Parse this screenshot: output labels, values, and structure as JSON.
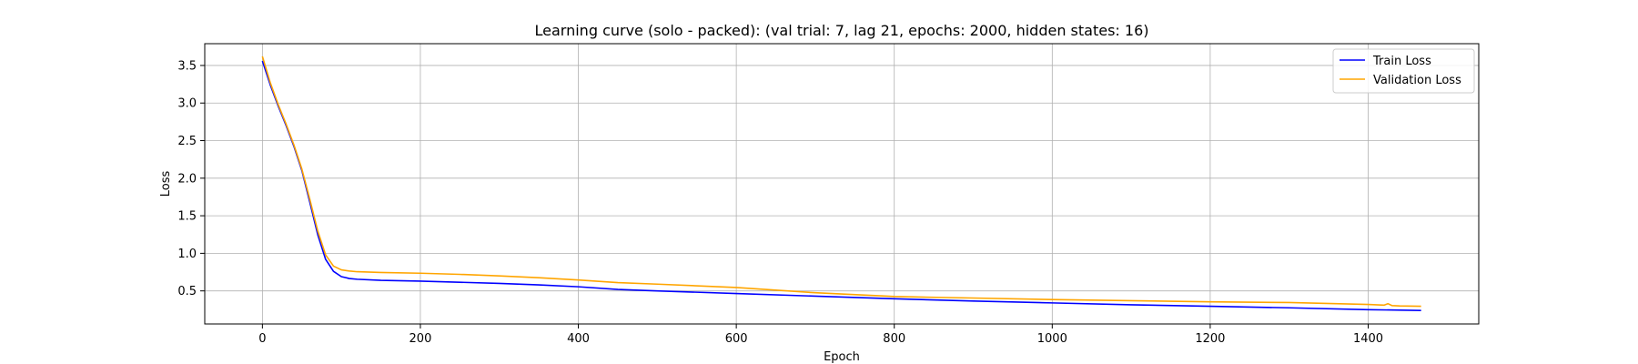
{
  "chart_data": {
    "type": "line",
    "title": "Learning curve (solo - packed): (val trial: 7, lag 21, epochs: 2000, hidden states: 16)",
    "xlabel": "Epoch",
    "ylabel": "Loss",
    "xlim": [
      -73,
      1540
    ],
    "ylim": [
      0.06,
      3.79
    ],
    "xticks": [
      0,
      200,
      400,
      600,
      800,
      1000,
      1200,
      1400
    ],
    "yticks": [
      0.5,
      1.0,
      1.5,
      2.0,
      2.5,
      3.0,
      3.5
    ],
    "xtick_labels": [
      "0",
      "200",
      "400",
      "600",
      "800",
      "1000",
      "1200",
      "1400"
    ],
    "ytick_labels": [
      "0.5",
      "1.0",
      "1.5",
      "2.0",
      "2.5",
      "3.0",
      "3.5"
    ],
    "grid": true,
    "legend_position": "top-right",
    "series": [
      {
        "name": "Train Loss",
        "color": "#0000ff",
        "x": [
          0,
          10,
          20,
          30,
          40,
          50,
          60,
          70,
          80,
          90,
          100,
          110,
          120,
          150,
          200,
          250,
          300,
          350,
          400,
          450,
          500,
          600,
          700,
          800,
          900,
          1000,
          1100,
          1200,
          1300,
          1400,
          1467
        ],
        "y": [
          3.56,
          3.24,
          2.96,
          2.7,
          2.42,
          2.1,
          1.68,
          1.25,
          0.92,
          0.76,
          0.69,
          0.665,
          0.655,
          0.64,
          0.63,
          0.615,
          0.6,
          0.58,
          0.555,
          0.52,
          0.5,
          0.465,
          0.43,
          0.395,
          0.365,
          0.34,
          0.315,
          0.295,
          0.275,
          0.25,
          0.24
        ]
      },
      {
        "name": "Validation Loss",
        "color": "#ffa500",
        "x": [
          0,
          10,
          20,
          30,
          40,
          50,
          60,
          70,
          80,
          90,
          100,
          110,
          120,
          150,
          200,
          250,
          300,
          350,
          400,
          450,
          500,
          600,
          700,
          800,
          900,
          1000,
          1100,
          1200,
          1300,
          1400,
          1420,
          1425,
          1430,
          1440,
          1467
        ],
        "y": [
          3.62,
          3.27,
          2.98,
          2.72,
          2.44,
          2.12,
          1.72,
          1.3,
          0.98,
          0.83,
          0.78,
          0.765,
          0.755,
          0.745,
          0.735,
          0.72,
          0.7,
          0.675,
          0.645,
          0.61,
          0.59,
          0.545,
          0.475,
          0.425,
          0.405,
          0.385,
          0.37,
          0.355,
          0.345,
          0.32,
          0.31,
          0.33,
          0.305,
          0.3,
          0.295
        ]
      }
    ]
  }
}
